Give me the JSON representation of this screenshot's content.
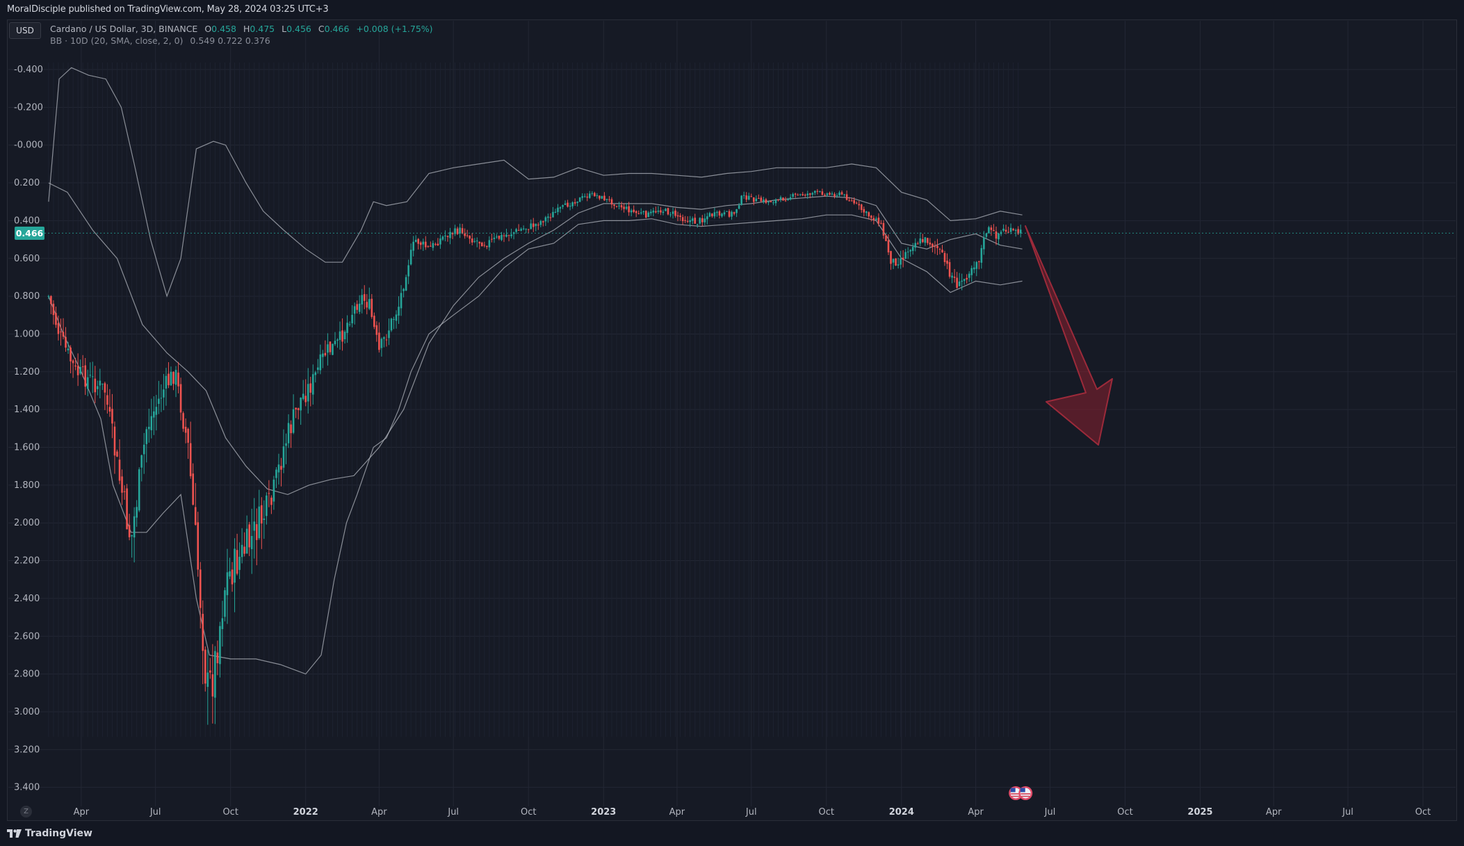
{
  "header": {
    "published": "MoralDisciple published on TradingView.com, May 28, 2024 03:25 UTC+3"
  },
  "toolbar": {
    "currency": "USD"
  },
  "legend": {
    "symbol": "Cardano / US Dollar, 3D, BINANCE",
    "open_key": "O",
    "open": "0.458",
    "high_key": "H",
    "high": "0.475",
    "low_key": "L",
    "low": "0.456",
    "close_key": "C",
    "close": "0.466",
    "change": "+0.008 (+1.75%)",
    "bb_label": "BB · 10D (20, SMA, close, 2, 0)",
    "bb_values": "0.549  0.722  0.376"
  },
  "price_badge": "0.466",
  "footer": {
    "logo_text": "TradingView",
    "goto_label": "Z"
  },
  "colors": {
    "background": "#131722",
    "up": "#26a69a",
    "down": "#ef5350",
    "band": "#b2b5be",
    "arrow": "#8b2130",
    "grid": "#232734"
  },
  "icons": [
    "tradingview-logo-icon",
    "us-flag-event-icon",
    "go-to-date-icon",
    "down-arrow-drawing"
  ],
  "chart_data": {
    "type": "candlestick",
    "y_axis": {
      "inverted": true,
      "ticks": [
        "-0.400",
        "-0.200",
        "-0.000",
        "0.200",
        "0.400",
        "0.600",
        "0.800",
        "1.000",
        "1.200",
        "1.400",
        "1.600",
        "1.800",
        "2.000",
        "2.200",
        "2.400",
        "2.600",
        "2.800",
        "3.000",
        "3.200",
        "3.400"
      ],
      "range": [
        -0.4,
        3.4
      ]
    },
    "x_axis": {
      "ticks": [
        "Apr",
        "Jul",
        "Oct",
        "2022",
        "Apr",
        "Jul",
        "Oct",
        "2023",
        "Apr",
        "Jul",
        "Oct",
        "2024",
        "Apr",
        "Jul",
        "Oct",
        "2025",
        "Apr",
        "Jul",
        "Oct"
      ],
      "range": [
        "2021-02-15",
        "2025-11-10"
      ]
    },
    "last_price": 0.466,
    "price_path": [
      [
        "2021-02-20",
        0.8
      ],
      [
        "2021-03-05",
        1.0
      ],
      [
        "2021-03-25",
        1.2
      ],
      [
        "2021-04-15",
        1.25
      ],
      [
        "2021-04-30",
        1.3
      ],
      [
        "2021-05-15",
        1.7
      ],
      [
        "2021-06-01",
        2.1
      ],
      [
        "2021-06-20",
        1.5
      ],
      [
        "2021-07-10",
        1.3
      ],
      [
        "2021-07-25",
        1.2
      ],
      [
        "2021-08-10",
        1.6
      ],
      [
        "2021-08-25",
        2.4
      ],
      [
        "2021-09-02",
        2.9
      ],
      [
        "2021-09-10",
        2.8
      ],
      [
        "2021-09-25",
        2.3
      ],
      [
        "2021-10-10",
        2.2
      ],
      [
        "2021-10-25",
        2.1
      ],
      [
        "2021-11-05",
        2.0
      ],
      [
        "2021-11-20",
        1.9
      ],
      [
        "2021-12-05",
        1.6
      ],
      [
        "2021-12-25",
        1.35
      ],
      [
        "2022-01-10",
        1.25
      ],
      [
        "2022-01-25",
        1.1
      ],
      [
        "2022-02-10",
        1.05
      ],
      [
        "2022-02-25",
        0.9
      ],
      [
        "2022-03-10",
        0.8
      ],
      [
        "2022-03-20",
        0.85
      ],
      [
        "2022-04-01",
        1.1
      ],
      [
        "2022-04-10",
        1.0
      ],
      [
        "2022-04-25",
        0.85
      ],
      [
        "2022-05-05",
        0.65
      ],
      [
        "2022-05-15",
        0.5
      ],
      [
        "2022-06-01",
        0.55
      ],
      [
        "2022-06-20",
        0.48
      ],
      [
        "2022-07-10",
        0.45
      ],
      [
        "2022-07-25",
        0.5
      ],
      [
        "2022-08-10",
        0.52
      ],
      [
        "2022-09-01",
        0.48
      ],
      [
        "2022-09-20",
        0.45
      ],
      [
        "2022-10-10",
        0.42
      ],
      [
        "2022-11-01",
        0.36
      ],
      [
        "2022-11-20",
        0.31
      ],
      [
        "2022-12-05",
        0.28
      ],
      [
        "2022-12-20",
        0.26
      ],
      [
        "2023-01-05",
        0.29
      ],
      [
        "2023-01-25",
        0.33
      ],
      [
        "2023-02-10",
        0.36
      ],
      [
        "2023-02-25",
        0.37
      ],
      [
        "2023-03-10",
        0.34
      ],
      [
        "2023-03-25",
        0.36
      ],
      [
        "2023-04-10",
        0.39
      ],
      [
        "2023-04-25",
        0.41
      ],
      [
        "2023-05-10",
        0.37
      ],
      [
        "2023-05-25",
        0.37
      ],
      [
        "2023-06-10",
        0.36
      ],
      [
        "2023-06-20",
        0.27
      ],
      [
        "2023-07-05",
        0.29
      ],
      [
        "2023-07-20",
        0.3
      ],
      [
        "2023-08-05",
        0.29
      ],
      [
        "2023-08-20",
        0.27
      ],
      [
        "2023-09-05",
        0.26
      ],
      [
        "2023-09-20",
        0.25
      ],
      [
        "2023-10-05",
        0.26
      ],
      [
        "2023-10-20",
        0.26
      ],
      [
        "2023-11-05",
        0.31
      ],
      [
        "2023-11-20",
        0.37
      ],
      [
        "2023-12-05",
        0.4
      ],
      [
        "2023-12-20",
        0.62
      ],
      [
        "2024-01-01",
        0.6
      ],
      [
        "2024-01-15",
        0.52
      ],
      [
        "2024-02-01",
        0.5
      ],
      [
        "2024-02-15",
        0.55
      ],
      [
        "2024-03-01",
        0.68
      ],
      [
        "2024-03-12",
        0.75
      ],
      [
        "2024-03-25",
        0.65
      ],
      [
        "2024-04-05",
        0.6
      ],
      [
        "2024-04-15",
        0.44
      ],
      [
        "2024-04-25",
        0.48
      ],
      [
        "2024-05-05",
        0.45
      ],
      [
        "2024-05-15",
        0.46
      ],
      [
        "2024-05-28",
        0.466
      ]
    ],
    "bollinger_upper": [
      [
        "2021-02-20",
        0.8
      ],
      [
        "2021-03-10",
        1.0
      ],
      [
        "2021-04-01",
        1.2
      ],
      [
        "2021-04-25",
        1.45
      ],
      [
        "2021-05-10",
        1.8
      ],
      [
        "2021-06-01",
        2.05
      ],
      [
        "2021-06-20",
        2.05
      ],
      [
        "2021-07-10",
        1.95
      ],
      [
        "2021-08-01",
        1.85
      ],
      [
        "2021-08-20",
        2.4
      ],
      [
        "2021-09-05",
        2.7
      ],
      [
        "2021-10-01",
        2.72
      ],
      [
        "2021-11-01",
        2.72
      ],
      [
        "2021-12-01",
        2.75
      ],
      [
        "2022-01-01",
        2.8
      ],
      [
        "2022-01-20",
        2.7
      ],
      [
        "2022-02-05",
        2.3
      ],
      [
        "2022-02-20",
        2.0
      ],
      [
        "2022-03-05",
        1.85
      ],
      [
        "2022-03-25",
        1.6
      ],
      [
        "2022-04-10",
        1.55
      ],
      [
        "2022-04-25",
        1.4
      ],
      [
        "2022-05-10",
        1.2
      ],
      [
        "2022-06-01",
        1.0
      ],
      [
        "2022-07-01",
        0.9
      ],
      [
        "2022-08-01",
        0.8
      ],
      [
        "2022-09-01",
        0.65
      ],
      [
        "2022-10-01",
        0.55
      ],
      [
        "2022-11-01",
        0.52
      ],
      [
        "2022-12-01",
        0.42
      ],
      [
        "2023-01-01",
        0.4
      ],
      [
        "2023-02-01",
        0.4
      ],
      [
        "2023-03-01",
        0.39
      ],
      [
        "2023-04-01",
        0.42
      ],
      [
        "2023-05-01",
        0.43
      ],
      [
        "2023-06-01",
        0.42
      ],
      [
        "2023-07-01",
        0.41
      ],
      [
        "2023-08-01",
        0.4
      ],
      [
        "2023-09-01",
        0.39
      ],
      [
        "2023-10-01",
        0.37
      ],
      [
        "2023-11-01",
        0.37
      ],
      [
        "2023-12-01",
        0.4
      ],
      [
        "2024-01-01",
        0.6
      ],
      [
        "2024-02-01",
        0.67
      ],
      [
        "2024-03-01",
        0.78
      ],
      [
        "2024-04-01",
        0.72
      ],
      [
        "2024-05-01",
        0.74
      ],
      [
        "2024-05-28",
        0.72
      ]
    ],
    "bollinger_lower": [
      [
        "2021-02-20",
        0.3
      ],
      [
        "2021-03-05",
        -0.35
      ],
      [
        "2021-03-20",
        -0.41
      ],
      [
        "2021-04-10",
        -0.37
      ],
      [
        "2021-05-01",
        -0.35
      ],
      [
        "2021-05-20",
        -0.2
      ],
      [
        "2021-06-05",
        0.1
      ],
      [
        "2021-06-25",
        0.5
      ],
      [
        "2021-07-15",
        0.8
      ],
      [
        "2021-08-01",
        0.6
      ],
      [
        "2021-08-20",
        0.02
      ],
      [
        "2021-09-10",
        -0.02
      ],
      [
        "2021-09-25",
        -0.0
      ],
      [
        "2021-10-20",
        0.2
      ],
      [
        "2021-11-10",
        0.35
      ],
      [
        "2021-12-05",
        0.45
      ],
      [
        "2022-01-01",
        0.55
      ],
      [
        "2022-01-25",
        0.62
      ],
      [
        "2022-02-15",
        0.62
      ],
      [
        "2022-03-10",
        0.45
      ],
      [
        "2022-03-25",
        0.3
      ],
      [
        "2022-04-10",
        0.32
      ],
      [
        "2022-05-05",
        0.3
      ],
      [
        "2022-06-01",
        0.15
      ],
      [
        "2022-07-01",
        0.12
      ],
      [
        "2022-08-01",
        0.1
      ],
      [
        "2022-09-01",
        0.08
      ],
      [
        "2022-10-01",
        0.18
      ],
      [
        "2022-11-01",
        0.17
      ],
      [
        "2022-12-01",
        0.12
      ],
      [
        "2023-01-01",
        0.16
      ],
      [
        "2023-02-01",
        0.15
      ],
      [
        "2023-03-01",
        0.15
      ],
      [
        "2023-04-01",
        0.16
      ],
      [
        "2023-05-01",
        0.17
      ],
      [
        "2023-06-01",
        0.15
      ],
      [
        "2023-07-01",
        0.14
      ],
      [
        "2023-08-01",
        0.12
      ],
      [
        "2023-09-01",
        0.12
      ],
      [
        "2023-10-01",
        0.12
      ],
      [
        "2023-11-01",
        0.1
      ],
      [
        "2023-12-01",
        0.12
      ],
      [
        "2024-01-01",
        0.25
      ],
      [
        "2024-02-01",
        0.29
      ],
      [
        "2024-03-01",
        0.4
      ],
      [
        "2024-04-01",
        0.39
      ],
      [
        "2024-05-01",
        0.35
      ],
      [
        "2024-05-28",
        0.37
      ]
    ],
    "bollinger_basis": [
      [
        "2021-02-20",
        0.2
      ],
      [
        "2021-03-15",
        0.25
      ],
      [
        "2021-04-15",
        0.45
      ],
      [
        "2021-05-15",
        0.6
      ],
      [
        "2021-06-15",
        0.95
      ],
      [
        "2021-07-15",
        1.1
      ],
      [
        "2021-08-10",
        1.2
      ],
      [
        "2021-09-01",
        1.3
      ],
      [
        "2021-09-25",
        1.55
      ],
      [
        "2021-10-20",
        1.7
      ],
      [
        "2021-11-15",
        1.82
      ],
      [
        "2021-12-10",
        1.85
      ],
      [
        "2022-01-05",
        1.8
      ],
      [
        "2022-02-01",
        1.77
      ],
      [
        "2022-03-01",
        1.75
      ],
      [
        "2022-04-01",
        1.6
      ],
      [
        "2022-05-01",
        1.4
      ],
      [
        "2022-06-01",
        1.05
      ],
      [
        "2022-07-01",
        0.85
      ],
      [
        "2022-08-01",
        0.7
      ],
      [
        "2022-09-01",
        0.6
      ],
      [
        "2022-10-01",
        0.52
      ],
      [
        "2022-11-01",
        0.45
      ],
      [
        "2022-12-01",
        0.36
      ],
      [
        "2023-01-01",
        0.31
      ],
      [
        "2023-02-01",
        0.31
      ],
      [
        "2023-03-01",
        0.31
      ],
      [
        "2023-04-01",
        0.33
      ],
      [
        "2023-05-01",
        0.34
      ],
      [
        "2023-06-01",
        0.32
      ],
      [
        "2023-07-01",
        0.31
      ],
      [
        "2023-08-01",
        0.29
      ],
      [
        "2023-09-01",
        0.28
      ],
      [
        "2023-10-01",
        0.27
      ],
      [
        "2023-11-01",
        0.28
      ],
      [
        "2023-12-01",
        0.32
      ],
      [
        "2024-01-01",
        0.52
      ],
      [
        "2024-02-01",
        0.55
      ],
      [
        "2024-03-01",
        0.5
      ],
      [
        "2024-04-01",
        0.47
      ],
      [
        "2024-05-01",
        0.53
      ],
      [
        "2024-05-28",
        0.55
      ]
    ],
    "annotation": {
      "type": "arrow",
      "direction": "down",
      "color": "#8b2130"
    },
    "event_markers": [
      "2024-05-20",
      "2024-06-01"
    ]
  }
}
